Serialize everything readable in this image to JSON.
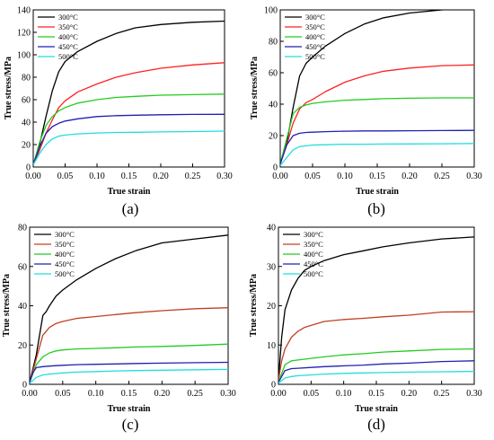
{
  "series_colors": [
    "#000000",
    "#ff2020",
    "#22cc22",
    "#2020b0",
    "#22dddd"
  ],
  "chart_data": [
    {
      "type": "line",
      "panel_label": "(a)",
      "xlabel": "True strain",
      "ylabel": "True stress/MPa",
      "xlim": [
        0,
        0.3
      ],
      "ylim": [
        0,
        140
      ],
      "xticks": [
        0.0,
        0.05,
        0.1,
        0.15,
        0.2,
        0.25,
        0.3
      ],
      "xtick_labels": [
        "0.00",
        "0.05",
        "0.10",
        "0.15",
        "0.20",
        "0.25",
        "0.30"
      ],
      "yticks": [
        0,
        20,
        40,
        60,
        80,
        100,
        120,
        140
      ],
      "ytick_labels": [
        "0",
        "20",
        "40",
        "60",
        "80",
        "100",
        "120",
        "140"
      ],
      "legend": "top-left",
      "series": [
        {
          "name": "300°C",
          "color": "#000000",
          "x": [
            0,
            0.01,
            0.02,
            0.03,
            0.04,
            0.05,
            0.07,
            0.1,
            0.13,
            0.16,
            0.2,
            0.25,
            0.3
          ],
          "y": [
            2,
            20,
            45,
            68,
            85,
            94,
            103,
            112,
            119,
            124,
            127,
            129,
            130
          ]
        },
        {
          "name": "350°C",
          "color": "#ff2020",
          "x": [
            0,
            0.01,
            0.02,
            0.03,
            0.04,
            0.05,
            0.07,
            0.1,
            0.13,
            0.16,
            0.2,
            0.25,
            0.3
          ],
          "y": [
            2,
            15,
            30,
            42,
            53,
            59,
            67,
            74,
            80,
            84,
            88,
            91,
            93
          ]
        },
        {
          "name": "400°C",
          "color": "#22cc22",
          "x": [
            0,
            0.01,
            0.02,
            0.03,
            0.04,
            0.05,
            0.07,
            0.1,
            0.13,
            0.16,
            0.2,
            0.25,
            0.3
          ],
          "y": [
            2,
            22,
            37,
            45,
            50,
            53,
            57,
            60,
            62,
            63,
            64,
            64.5,
            65
          ]
        },
        {
          "name": "450°C",
          "color": "#2020b0",
          "x": [
            0,
            0.01,
            0.02,
            0.03,
            0.04,
            0.05,
            0.07,
            0.1,
            0.13,
            0.16,
            0.2,
            0.25,
            0.3
          ],
          "y": [
            2,
            18,
            30,
            36,
            39,
            41,
            43,
            45,
            45.8,
            46.2,
            46.6,
            46.9,
            47
          ]
        },
        {
          "name": "500°C",
          "color": "#22dddd",
          "x": [
            0,
            0.01,
            0.02,
            0.03,
            0.04,
            0.05,
            0.07,
            0.1,
            0.13,
            0.16,
            0.2,
            0.25,
            0.3
          ],
          "y": [
            2,
            12,
            20,
            25,
            27.5,
            28.5,
            29.5,
            30.3,
            30.8,
            31,
            31.3,
            31.6,
            32
          ]
        }
      ]
    },
    {
      "type": "line",
      "panel_label": "(b)",
      "xlabel": "True strain",
      "ylabel": "True stress/MPa",
      "xlim": [
        0,
        0.3
      ],
      "ylim": [
        0,
        100
      ],
      "xticks": [
        0.0,
        0.05,
        0.1,
        0.15,
        0.2,
        0.25,
        0.3
      ],
      "xtick_labels": [
        "0.00",
        "0.05",
        "0.10",
        "0.15",
        "0.20",
        "0.25",
        "0.30"
      ],
      "yticks": [
        0,
        20,
        40,
        60,
        80,
        100
      ],
      "ytick_labels": [
        "0",
        "20",
        "40",
        "60",
        "80",
        "100"
      ],
      "legend": "top-left",
      "series": [
        {
          "name": "300°C",
          "color": "#000000",
          "x": [
            0,
            0.01,
            0.02,
            0.03,
            0.04,
            0.05,
            0.07,
            0.1,
            0.13,
            0.16,
            0.2,
            0.25,
            0.3
          ],
          "y": [
            2,
            15,
            38,
            58,
            66,
            70,
            77,
            85,
            91,
            95,
            98,
            100,
            101
          ]
        },
        {
          "name": "350°C",
          "color": "#ff2020",
          "x": [
            0,
            0.01,
            0.02,
            0.03,
            0.04,
            0.05,
            0.07,
            0.1,
            0.13,
            0.16,
            0.2,
            0.25,
            0.3
          ],
          "y": [
            2,
            14,
            28,
            37,
            41,
            43,
            48,
            54,
            58,
            61,
            63,
            64.5,
            65
          ]
        },
        {
          "name": "400°C",
          "color": "#22cc22",
          "x": [
            0,
            0.01,
            0.02,
            0.03,
            0.04,
            0.05,
            0.07,
            0.1,
            0.13,
            0.16,
            0.2,
            0.25,
            0.3
          ],
          "y": [
            2,
            18,
            34,
            38,
            39.5,
            40.5,
            41.5,
            42.5,
            43,
            43.5,
            43.8,
            44,
            44
          ]
        },
        {
          "name": "450°C",
          "color": "#2020b0",
          "x": [
            0,
            0.01,
            0.02,
            0.03,
            0.04,
            0.05,
            0.07,
            0.1,
            0.13,
            0.16,
            0.2,
            0.25,
            0.3
          ],
          "y": [
            2,
            14,
            20,
            21.5,
            22,
            22.2,
            22.5,
            22.8,
            23,
            23,
            23.1,
            23.2,
            23.3
          ]
        },
        {
          "name": "500°C",
          "color": "#22dddd",
          "x": [
            0,
            0.01,
            0.02,
            0.03,
            0.04,
            0.05,
            0.07,
            0.1,
            0.13,
            0.16,
            0.2,
            0.25,
            0.3
          ],
          "y": [
            1,
            6,
            11,
            13,
            13.5,
            14,
            14.2,
            14.5,
            14.5,
            14.6,
            14.7,
            14.8,
            15
          ]
        }
      ]
    },
    {
      "type": "line",
      "panel_label": "(c)",
      "xlabel": "True strain",
      "ylabel": "True stress/MPa",
      "xlim": [
        0,
        0.3
      ],
      "ylim": [
        0,
        80
      ],
      "xticks": [
        0.0,
        0.05,
        0.1,
        0.15,
        0.2,
        0.25,
        0.3
      ],
      "xtick_labels": [
        "0.00",
        "0.05",
        "0.10",
        "0.15",
        "0.20",
        "0.25",
        "0.30"
      ],
      "yticks": [
        0,
        20,
        40,
        60,
        80
      ],
      "ytick_labels": [
        "0",
        "20",
        "40",
        "60",
        "80"
      ],
      "legend": "top-left",
      "series": [
        {
          "name": "300°C",
          "color": "#000000",
          "x": [
            0,
            0.01,
            0.02,
            0.025,
            0.03,
            0.04,
            0.05,
            0.07,
            0.1,
            0.13,
            0.16,
            0.2,
            0.25,
            0.3
          ],
          "y": [
            1,
            15,
            35,
            37,
            40,
            45,
            48,
            53,
            59,
            64,
            68,
            72,
            74,
            76
          ]
        },
        {
          "name": "350°C",
          "color": "#c04020",
          "x": [
            0,
            0.01,
            0.02,
            0.03,
            0.04,
            0.05,
            0.07,
            0.1,
            0.13,
            0.16,
            0.2,
            0.25,
            0.3
          ],
          "y": [
            1,
            13,
            25,
            29,
            31,
            32,
            33.5,
            34.5,
            35.5,
            36.5,
            37.5,
            38.5,
            39
          ]
        },
        {
          "name": "400°C",
          "color": "#22cc22",
          "x": [
            0,
            0.01,
            0.02,
            0.03,
            0.04,
            0.05,
            0.07,
            0.1,
            0.13,
            0.16,
            0.2,
            0.25,
            0.3
          ],
          "y": [
            1,
            10,
            14,
            16,
            17,
            17.5,
            18,
            18.3,
            18.6,
            19,
            19.3,
            19.8,
            20.5
          ]
        },
        {
          "name": "450°C",
          "color": "#2020b0",
          "x": [
            0,
            0.005,
            0.01,
            0.02,
            0.03,
            0.04,
            0.05,
            0.07,
            0.1,
            0.13,
            0.16,
            0.2,
            0.25,
            0.3
          ],
          "y": [
            1,
            6,
            8.5,
            9,
            9.3,
            9.5,
            9.7,
            10,
            10.2,
            10.4,
            10.6,
            10.8,
            11,
            11.2
          ]
        },
        {
          "name": "500°C",
          "color": "#22dddd",
          "x": [
            0,
            0.01,
            0.02,
            0.03,
            0.05,
            0.07,
            0.1,
            0.13,
            0.16,
            0.2,
            0.25,
            0.3
          ],
          "y": [
            0.5,
            3.5,
            4.8,
            5.2,
            5.8,
            6.2,
            6.5,
            6.8,
            7,
            7.2,
            7.4,
            7.6
          ]
        }
      ]
    },
    {
      "type": "line",
      "panel_label": "(d)",
      "xlabel": "True strain",
      "ylabel": "True stress/MPa",
      "xlim": [
        0,
        0.3
      ],
      "ylim": [
        0,
        40
      ],
      "xticks": [
        0.0,
        0.05,
        0.1,
        0.15,
        0.2,
        0.25,
        0.3
      ],
      "xtick_labels": [
        "0.00",
        "0.05",
        "0.10",
        "0.15",
        "0.20",
        "0.25",
        "0.30"
      ],
      "yticks": [
        0,
        10,
        20,
        30,
        40
      ],
      "ytick_labels": [
        "0",
        "10",
        "20",
        "30",
        "40"
      ],
      "legend": "top-left",
      "series": [
        {
          "name": "300°C",
          "color": "#000000",
          "x": [
            0,
            0.005,
            0.01,
            0.02,
            0.03,
            0.04,
            0.05,
            0.07,
            0.1,
            0.13,
            0.16,
            0.2,
            0.25,
            0.3
          ],
          "y": [
            1,
            12,
            19,
            24,
            27,
            29,
            30,
            31.5,
            33,
            34,
            35,
            36,
            37,
            37.5
          ]
        },
        {
          "name": "350°C",
          "color": "#c04020",
          "x": [
            0,
            0.005,
            0.01,
            0.02,
            0.03,
            0.04,
            0.05,
            0.07,
            0.1,
            0.13,
            0.16,
            0.2,
            0.25,
            0.3
          ],
          "y": [
            1,
            6,
            9,
            12,
            13.5,
            14.5,
            15,
            16,
            16.5,
            16.8,
            17.2,
            17.6,
            18.4,
            18.5
          ]
        },
        {
          "name": "400°C",
          "color": "#22cc22",
          "x": [
            0,
            0.01,
            0.02,
            0.03,
            0.05,
            0.07,
            0.1,
            0.13,
            0.16,
            0.2,
            0.25,
            0.3
          ],
          "y": [
            0.5,
            5,
            6,
            6.2,
            6.6,
            7,
            7.5,
            7.8,
            8.2,
            8.5,
            8.9,
            9
          ]
        },
        {
          "name": "450°C",
          "color": "#2020b0",
          "x": [
            0,
            0.01,
            0.02,
            0.03,
            0.05,
            0.07,
            0.1,
            0.13,
            0.16,
            0.2,
            0.25,
            0.3
          ],
          "y": [
            0.5,
            3.5,
            4,
            4.1,
            4.3,
            4.5,
            4.7,
            4.9,
            5.2,
            5.4,
            5.8,
            6
          ]
        },
        {
          "name": "500°C",
          "color": "#22dddd",
          "x": [
            0,
            0.01,
            0.02,
            0.03,
            0.05,
            0.07,
            0.1,
            0.13,
            0.16,
            0.2,
            0.25,
            0.3
          ],
          "y": [
            0.3,
            1.6,
            2,
            2.2,
            2.4,
            2.6,
            2.8,
            2.9,
            3,
            3.1,
            3.2,
            3.3
          ]
        }
      ]
    }
  ]
}
